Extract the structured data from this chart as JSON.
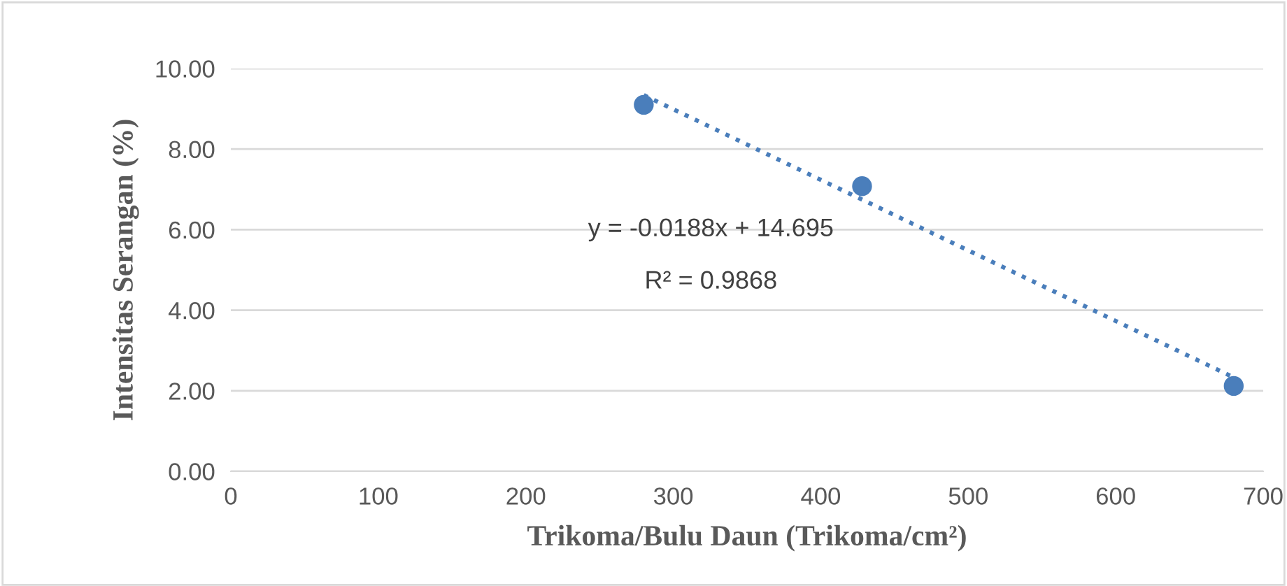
{
  "chart_data": {
    "type": "scatter",
    "xlabel": "Trikoma/Bulu Daun (Trikoma/cm²)",
    "ylabel": "Intensitas Serangan (%)",
    "series": [
      {
        "color": "#4a7ebb",
        "x": [
          280,
          428,
          680
        ],
        "values": [
          9.1,
          7.08,
          2.12
        ],
        "marker": "circle"
      },
      {
        "type": "line",
        "color": "#4a7ebb",
        "x": [
          280,
          680
        ],
        "values": [
          9.34,
          2.33
        ],
        "line_style": "dotted"
      }
    ],
    "annotations": [
      "y = -0.0188x + 14.695",
      "R² = 0.9868"
    ],
    "xlim": [
      0,
      700
    ],
    "xticks": [
      0,
      100,
      200,
      300,
      400,
      500,
      600,
      700
    ],
    "ylim": [
      0,
      10
    ],
    "yticks": [
      {
        "value": 0,
        "label": "0.00"
      },
      {
        "value": 2,
        "label": "2.00"
      },
      {
        "value": 4,
        "label": "4.00"
      },
      {
        "value": 6,
        "label": "6.00"
      },
      {
        "value": 8,
        "label": "8.00"
      },
      {
        "value": 10,
        "label": "10.00"
      }
    ],
    "grid": "y",
    "legend": false
  }
}
